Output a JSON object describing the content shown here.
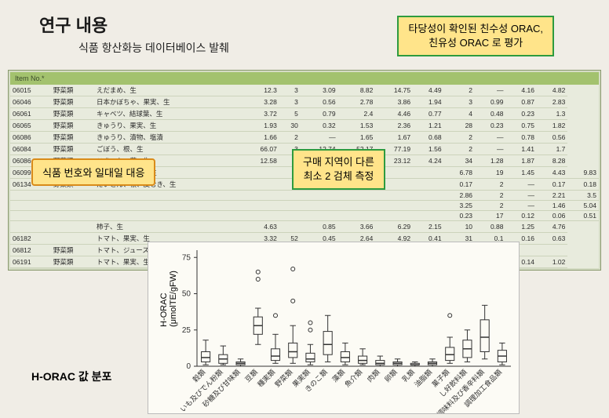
{
  "titles": {
    "main": "연구 내용",
    "sub": "식품 항산화능 데이터베이스 발췌"
  },
  "callouts": {
    "topL1": "타당성이 확인된 친수성 ORAC,",
    "topL2": "친유성 ORAC 로 평가",
    "midL1": "구매 지역이 다른",
    "midL2": "최소 2 검체 측정",
    "left": "식품 번호와 일대일 대응"
  },
  "table": {
    "header": "Item No.*",
    "rows": [
      {
        "id": "06015",
        "cls": "野菜類",
        "name": "えだまめ、生",
        "v": [
          12.3,
          3,
          3.09,
          8.82,
          14.75,
          4.49,
          2,
          "—",
          4.16,
          4.82
        ]
      },
      {
        "id": "06046",
        "cls": "野菜類",
        "name": "日本かぼちゃ、果実、生",
        "v": [
          3.28,
          3,
          0.56,
          2.78,
          3.86,
          1.94,
          3,
          0.99,
          0.87,
          2.83
        ]
      },
      {
        "id": "06061",
        "cls": "野菜類",
        "name": "キャベツ、結球葉、生",
        "v": [
          3.72,
          5,
          0.79,
          2.4,
          4.46,
          0.77,
          4,
          0.48,
          0.23,
          1.3
        ]
      },
      {
        "id": "06065",
        "cls": "野菜類",
        "name": "きゅうり、果実、生",
        "v": [
          1.93,
          30,
          0.32,
          1.53,
          2.36,
          1.21,
          28,
          0.23,
          0.75,
          1.82
        ]
      },
      {
        "id": "06086",
        "cls": "野菜類",
        "name": "きゅうり、漬物、塩漬",
        "v": [
          1.66,
          2,
          "—",
          1.65,
          1.67,
          0.68,
          2,
          "—",
          0.78,
          0.56
        ]
      },
      {
        "id": "06084",
        "cls": "野菜類",
        "name": "ごぼう、根、生",
        "v": [
          66.07,
          3,
          12.74,
          52.17,
          77.19,
          1.56,
          2,
          "—",
          1.41,
          1.7
        ]
      },
      {
        "id": "06086",
        "cls": "野菜類",
        "name": "こまつな、葉、生",
        "v": [
          12.58,
          3,
          4.22,
          8.15,
          23.12,
          4.24,
          34,
          1.28,
          1.87,
          8.28
        ]
      },
      {
        "id": "06099",
        "cls": "野菜類",
        "name": "しゅんぎく、葉、生",
        "v": [
          "",
          "",
          "",
          "",
          "",
          "",
          6.78,
          19,
          1.45,
          4.43,
          9.83
        ]
      },
      {
        "id": "06134",
        "cls": "野菜類",
        "name": "だいこん、根、皮むき、生",
        "v": [
          "",
          "",
          "",
          "",
          "",
          "",
          0.17,
          2,
          "—",
          0.17,
          0.18
        ]
      },
      {
        "id": "",
        "cls": "",
        "name": "",
        "v": [
          "",
          "",
          "",
          "",
          "",
          "",
          2.86,
          2,
          "—",
          2.21,
          3.5
        ]
      },
      {
        "id": "",
        "cls": "",
        "name": "",
        "v": [
          "",
          "",
          "",
          "",
          "",
          "",
          3.25,
          2,
          "—",
          1.46,
          5.04
        ]
      },
      {
        "id": "",
        "cls": "",
        "name": "",
        "v": [
          "",
          "",
          "",
          "",
          "",
          "",
          0.23,
          17,
          0.12,
          0.06,
          0.51
        ]
      },
      {
        "id": "",
        "cls": "",
        "name": "柿子、生",
        "v": [
          4.63,
          "",
          0.85,
          3.66,
          6.29,
          2.15,
          10,
          0.88,
          1.25,
          4.76
        ]
      },
      {
        "id": "06182",
        "cls": "",
        "name": "トマト、果実、生",
        "v": [
          3.32,
          52,
          0.45,
          2.64,
          4.92,
          0.41,
          31,
          0.1,
          0.16,
          0.63
        ]
      },
      {
        "id": "06812",
        "cls": "野菜類",
        "name": "トマト、ジュース",
        "v": [
          5.61,
          2,
          "—",
          3.59,
          7.63,
          "ND",
          "",
          "",
          "",
          ""
        ]
      },
      {
        "id": "06191",
        "cls": "野菜類",
        "name": "トマト、果実、生",
        "v": [
          27.65,
          3,
          11.85,
          15.55,
          38.79,
          0.58,
          2,
          "—",
          0.14,
          1.02
        ]
      }
    ]
  },
  "chart": {
    "ylabel": "H-ORAC\n(μmolTE/gFW)",
    "title": "H-ORAC 값 분포",
    "yticks": [
      0,
      25,
      50,
      75
    ],
    "ylim": [
      0,
      80
    ],
    "categories": [
      "穀類",
      "いも及びでん粉類",
      "砂糖及び甘味類",
      "豆類",
      "種実類",
      "野菜類",
      "果実類",
      "きのこ類",
      "藻類",
      "魚介類",
      "肉類",
      "卵類",
      "乳類",
      "油脂類",
      "菓子類",
      "し好飲料類",
      "調味料及び香辛料類",
      "調理加工食品類"
    ],
    "boxes": [
      {
        "q1": 3,
        "med": 6,
        "q3": 10,
        "lw": 1,
        "uw": 18,
        "out": []
      },
      {
        "q1": 2,
        "med": 5,
        "q3": 8,
        "lw": 1,
        "uw": 14,
        "out": []
      },
      {
        "q1": 1,
        "med": 2,
        "q3": 3,
        "lw": 0,
        "uw": 5,
        "out": []
      },
      {
        "q1": 22,
        "med": 28,
        "q3": 34,
        "lw": 15,
        "uw": 40,
        "out": [
          65,
          60
        ]
      },
      {
        "q1": 4,
        "med": 7,
        "q3": 12,
        "lw": 2,
        "uw": 22,
        "out": [
          35
        ]
      },
      {
        "q1": 6,
        "med": 10,
        "q3": 16,
        "lw": 2,
        "uw": 28,
        "out": [
          67,
          45
        ]
      },
      {
        "q1": 3,
        "med": 5,
        "q3": 9,
        "lw": 1,
        "uw": 15,
        "out": [
          25,
          30
        ]
      },
      {
        "q1": 8,
        "med": 15,
        "q3": 24,
        "lw": 3,
        "uw": 35,
        "out": []
      },
      {
        "q1": 3,
        "med": 6,
        "q3": 10,
        "lw": 1,
        "uw": 16,
        "out": []
      },
      {
        "q1": 2,
        "med": 4,
        "q3": 7,
        "lw": 1,
        "uw": 12,
        "out": []
      },
      {
        "q1": 1,
        "med": 2,
        "q3": 4,
        "lw": 0,
        "uw": 7,
        "out": []
      },
      {
        "q1": 1,
        "med": 2,
        "q3": 3,
        "lw": 0,
        "uw": 5,
        "out": []
      },
      {
        "q1": 1,
        "med": 1,
        "q3": 2,
        "lw": 0,
        "uw": 3,
        "out": []
      },
      {
        "q1": 1,
        "med": 2,
        "q3": 3,
        "lw": 0,
        "uw": 5,
        "out": []
      },
      {
        "q1": 4,
        "med": 8,
        "q3": 13,
        "lw": 2,
        "uw": 20,
        "out": [
          35
        ]
      },
      {
        "q1": 6,
        "med": 12,
        "q3": 18,
        "lw": 3,
        "uw": 25,
        "out": []
      },
      {
        "q1": 10,
        "med": 20,
        "q3": 32,
        "lw": 5,
        "uw": 42,
        "out": []
      },
      {
        "q1": 3,
        "med": 7,
        "q3": 11,
        "lw": 1,
        "uw": 16,
        "out": []
      }
    ],
    "box_color": "#555555",
    "bg": "#fcfbf5"
  }
}
